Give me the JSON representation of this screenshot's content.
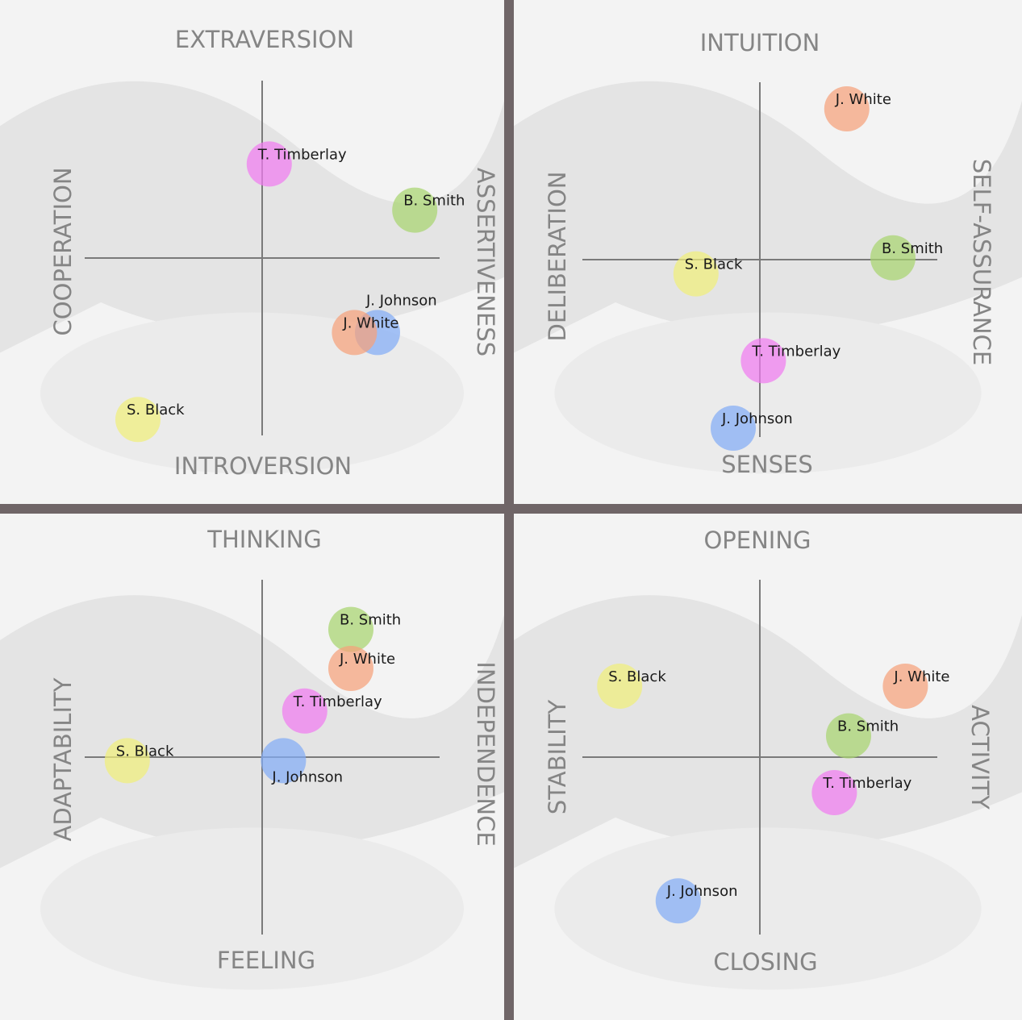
{
  "colors": {
    "frame": "#6f6567",
    "T. Timberlay": "#f07cf0",
    "B. Smith": "#a8d46f",
    "J. Johnson": "#82acf5",
    "J. White": "#f5a17a",
    "S. Black": "#f0ee7a"
  },
  "chart_data": [
    {
      "type": "scatter",
      "axes": {
        "top": "EXTRAVERSION",
        "bottom": "INTROVERSION",
        "left": "COOPERATION",
        "right": "ASSERTIVENESS"
      },
      "xlim": [
        -1,
        1
      ],
      "ylim": [
        -1,
        1
      ],
      "points": [
        {
          "label": "T. Timberlay",
          "x": 0.04,
          "y": 0.53
        },
        {
          "label": "B. Smith",
          "x": 0.86,
          "y": 0.27
        },
        {
          "label": "J. Johnson",
          "x": 0.65,
          "y": -0.42
        },
        {
          "label": "J. White",
          "x": 0.52,
          "y": -0.42
        },
        {
          "label": "S. Black",
          "x": -0.7,
          "y": -0.91
        }
      ]
    },
    {
      "type": "scatter",
      "axes": {
        "top": "INTUITION",
        "bottom": "SENSES",
        "left": "DELIBERATION",
        "right": "SELF-ASSURANCE"
      },
      "xlim": [
        -1,
        1
      ],
      "ylim": [
        -1,
        1
      ],
      "points": [
        {
          "label": "J. White",
          "x": 0.49,
          "y": 0.85
        },
        {
          "label": "B. Smith",
          "x": 0.75,
          "y": 0.01
        },
        {
          "label": "S. Black",
          "x": -0.36,
          "y": -0.08
        },
        {
          "label": "T. Timberlay",
          "x": 0.02,
          "y": -0.57
        },
        {
          "label": "J. Johnson",
          "x": -0.15,
          "y": -0.95
        }
      ]
    },
    {
      "type": "scatter",
      "axes": {
        "top": "THINKING",
        "bottom": "FEELING",
        "left": "ADAPTABILITY",
        "right": "INDEPENDENCE"
      },
      "xlim": [
        -1,
        1
      ],
      "ylim": [
        -1,
        1
      ],
      "points": [
        {
          "label": "B. Smith",
          "x": 0.5,
          "y": 0.72
        },
        {
          "label": "J. White",
          "x": 0.5,
          "y": 0.5
        },
        {
          "label": "T. Timberlay",
          "x": 0.24,
          "y": 0.26
        },
        {
          "label": "S. Black",
          "x": -0.76,
          "y": -0.02
        },
        {
          "label": "J. Johnson",
          "x": 0.12,
          "y": -0.02
        }
      ]
    },
    {
      "type": "scatter",
      "axes": {
        "top": "OPENING",
        "bottom": "CLOSING",
        "left": "STABILITY",
        "right": "ACTIVITY"
      },
      "xlim": [
        -1,
        1
      ],
      "ylim": [
        -1,
        1
      ],
      "points": [
        {
          "label": "S. Black",
          "x": -0.79,
          "y": 0.4
        },
        {
          "label": "J. White",
          "x": 0.82,
          "y": 0.4
        },
        {
          "label": "B. Smith",
          "x": 0.5,
          "y": 0.12
        },
        {
          "label": "T. Timberlay",
          "x": 0.42,
          "y": -0.2
        },
        {
          "label": "J. Johnson",
          "x": -0.46,
          "y": -0.81
        }
      ]
    }
  ]
}
